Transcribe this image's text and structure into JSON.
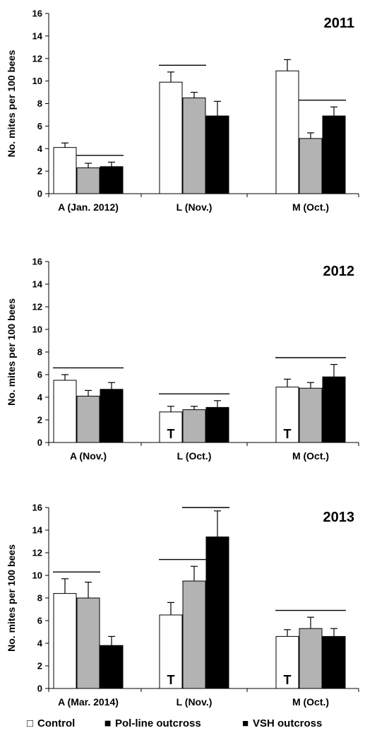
{
  "chart_data": {
    "type": "bar",
    "series_names": [
      "Control",
      "Pol-line outcross",
      "VSH outcross"
    ],
    "series_colors": [
      "#ffffff",
      "#b3b3b3",
      "#000000"
    ],
    "panels": [
      {
        "year": "2011",
        "ylabel": "No. mites per 100 bees",
        "ylim": [
          0,
          16
        ],
        "yticks": [
          "0",
          "2",
          "4",
          "6",
          "8",
          "10",
          "12",
          "14",
          "16"
        ],
        "categories": [
          "A (Jan. 2012)",
          "L (Nov.)",
          "M (Oct.)"
        ],
        "series": [
          {
            "name": "Control",
            "values": [
              4.1,
              9.9,
              10.9
            ],
            "errors": [
              0.4,
              0.9,
              1.0
            ]
          },
          {
            "name": "Pol-line outcross",
            "values": [
              2.3,
              8.5,
              4.9
            ],
            "errors": [
              0.4,
              0.5,
              0.5
            ]
          },
          {
            "name": "VSH outcross",
            "values": [
              2.4,
              6.9,
              6.9
            ],
            "errors": [
              0.4,
              1.3,
              0.8
            ]
          }
        ],
        "t_marks": [],
        "brackets": [
          [
            0,
            1,
            2
          ],
          [
            1,
            0,
            1
          ],
          [
            2,
            1,
            2
          ]
        ]
      },
      {
        "year": "2012",
        "ylabel": "No. mites per 100 bees",
        "ylim": [
          0,
          16
        ],
        "yticks": [
          "0",
          "2",
          "4",
          "6",
          "8",
          "10",
          "12",
          "14",
          "16"
        ],
        "categories": [
          "A (Nov.)",
          "L (Oct.)",
          "M (Oct.)"
        ],
        "series": [
          {
            "name": "Control",
            "values": [
              5.5,
              2.7,
              4.9
            ],
            "errors": [
              0.5,
              0.5,
              0.7
            ]
          },
          {
            "name": "Pol-line outcross",
            "values": [
              4.1,
              2.9,
              4.8
            ],
            "errors": [
              0.5,
              0.3,
              0.5
            ]
          },
          {
            "name": "VSH outcross",
            "values": [
              4.7,
              3.1,
              5.8
            ],
            "errors": [
              0.6,
              0.6,
              1.1
            ]
          }
        ],
        "t_marks": [
          [
            1,
            0,
            "T"
          ],
          [
            2,
            0,
            "T"
          ]
        ],
        "brackets": [
          [
            0,
            0,
            2
          ],
          [
            1,
            0,
            2
          ],
          [
            2,
            0,
            2
          ]
        ]
      },
      {
        "year": "2013",
        "ylabel": "No. mites per 100 bees",
        "ylim": [
          0,
          16
        ],
        "yticks": [
          "0",
          "2",
          "4",
          "6",
          "8",
          "10",
          "12",
          "14",
          "16"
        ],
        "categories": [
          "A (Mar. 2014)",
          "L (Nov.)",
          "M (Oct.)"
        ],
        "series": [
          {
            "name": "Control",
            "values": [
              8.4,
              6.5,
              4.6
            ],
            "errors": [
              1.3,
              1.1,
              0.6
            ]
          },
          {
            "name": "Pol-line outcross",
            "values": [
              8.0,
              9.5,
              5.3
            ],
            "errors": [
              1.4,
              1.3,
              1.0
            ]
          },
          {
            "name": "VSH outcross",
            "values": [
              3.8,
              13.4,
              4.6
            ],
            "errors": [
              0.8,
              2.3,
              0.7
            ]
          }
        ],
        "t_marks": [
          [
            1,
            0,
            "T"
          ],
          [
            2,
            0,
            "T"
          ]
        ],
        "brackets": [
          [
            0,
            0,
            1
          ],
          [
            1,
            0,
            1
          ],
          [
            1,
            1,
            2
          ],
          [
            2,
            0,
            2
          ]
        ]
      }
    ],
    "legend": {
      "placement": "bottom",
      "entries": [
        {
          "symbol": "□",
          "label": "Control"
        },
        {
          "symbol": "■",
          "label": "Pol-line outcross",
          "color": "#b3b3b3"
        },
        {
          "symbol": "■",
          "label": "VSH outcross",
          "color": "#000000"
        }
      ]
    }
  }
}
